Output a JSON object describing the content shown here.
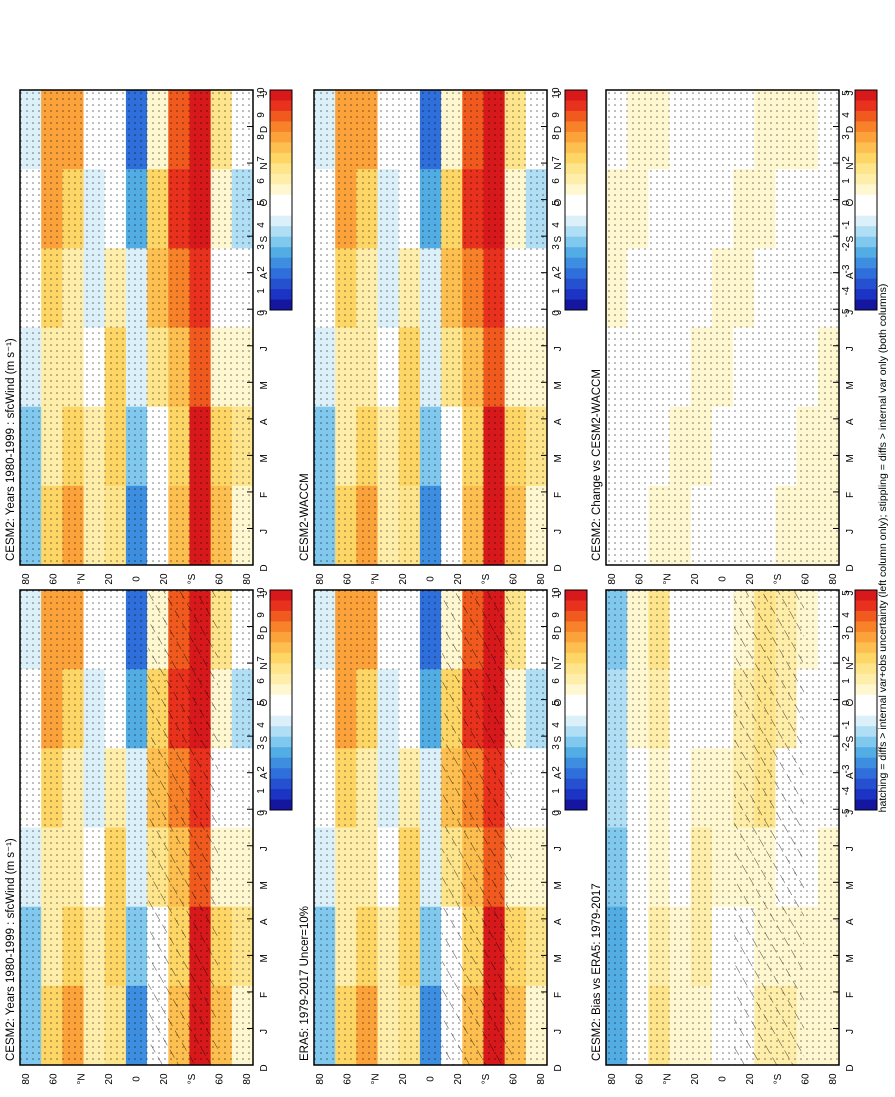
{
  "footer_note": "hatching = diffs > internal var+obs uncertainty (left column only); stippling = diffs > internal var only (both columns)",
  "axes": {
    "months": [
      "D",
      "J",
      "F",
      "M",
      "A",
      "M",
      "J",
      "J",
      "A",
      "S",
      "O",
      "N",
      "D",
      "J"
    ],
    "lat_ticks": [
      "80",
      "60",
      "°N",
      "20",
      "0",
      "20",
      "°S",
      "60",
      "80"
    ]
  },
  "colorbars": {
    "wind": {
      "labels": [
        "10",
        "9",
        "8",
        "7",
        "6",
        "5",
        "4",
        "3",
        "2",
        "1",
        "0"
      ],
      "colors": [
        "#d7191c",
        "#e8321e",
        "#f05a1e",
        "#f7822a",
        "#fca23a",
        "#fdbf4f",
        "#fed666",
        "#fee48a",
        "#feeeaa",
        "#fff7d0",
        "#ffffff",
        "#ffffff",
        "#dcf0fa",
        "#b0def5",
        "#80c8ee",
        "#52ade4",
        "#3d8ee0",
        "#2f6fdb",
        "#2550d0",
        "#1b34c4",
        "#1416a0"
      ]
    },
    "diff": {
      "labels": [
        "5",
        "4",
        "3",
        "2",
        "1",
        "0",
        "-1",
        "-2",
        "-3",
        "-4",
        "-5"
      ],
      "colors": [
        "#d7191c",
        "#e8321e",
        "#f05a1e",
        "#f7822a",
        "#fca23a",
        "#fdbf4f",
        "#fed666",
        "#fee48a",
        "#feeeaa",
        "#fff7d0",
        "#ffffff",
        "#ffffff",
        "#dcf0fa",
        "#b0def5",
        "#80c8ee",
        "#52ade4",
        "#3d8ee0",
        "#2f6fdb",
        "#2550d0",
        "#1b34c4",
        "#1416a0"
      ]
    }
  },
  "chart_data": [
    {
      "type": "heatmap",
      "title": "CESM2: Years 1980-1999 : sfcWind (m s⁻¹)",
      "variable": "sfcWind",
      "x": [
        "D",
        "J",
        "F",
        "M",
        "A",
        "M",
        "J",
        "J",
        "A",
        "S",
        "O",
        "N",
        "D",
        "J"
      ],
      "y": [
        "80",
        "60",
        "°N",
        "20",
        "0",
        "20",
        "°S",
        "60",
        "80"
      ],
      "zlim": [
        0,
        10
      ],
      "hatching": true,
      "stippling": true,
      "lat_profile": [
        4,
        7,
        7,
        5,
        6,
        3,
        6,
        8,
        10,
        6,
        5
      ]
    },
    {
      "type": "heatmap",
      "title": "CESM2: Years 1980-1999 : sfcWind (m s⁻¹)",
      "variable": "sfcWind",
      "x": [
        "D",
        "J",
        "F",
        "M",
        "A",
        "M",
        "J",
        "J",
        "A",
        "S",
        "O",
        "N",
        "D",
        "J"
      ],
      "y": [
        "80",
        "60",
        "°N",
        "20",
        "0",
        "20",
        "°S",
        "60",
        "80"
      ],
      "zlim": [
        0,
        10
      ],
      "hatching": false,
      "stippling": true,
      "lat_profile": [
        4,
        7,
        7,
        5,
        6,
        3,
        6,
        8,
        10,
        6,
        5
      ]
    },
    {
      "type": "heatmap",
      "title": "ERA5: 1979-2017 Uncer=10%",
      "variable": "sfcWind",
      "x": [
        "D",
        "J",
        "F",
        "M",
        "A",
        "M",
        "J",
        "J",
        "A",
        "S",
        "O",
        "N",
        "D",
        "J"
      ],
      "y": [
        "80",
        "60",
        "°N",
        "20",
        "0",
        "20",
        "°S",
        "60",
        "80"
      ],
      "zlim": [
        0,
        10
      ],
      "hatching": true,
      "stippling": true,
      "lat_profile": [
        4,
        7,
        7,
        5,
        6,
        3,
        6,
        8,
        10,
        6,
        5
      ]
    },
    {
      "type": "heatmap",
      "title": "CESM2-WACCM",
      "variable": "sfcWind",
      "x": [
        "D",
        "J",
        "F",
        "M",
        "A",
        "M",
        "J",
        "J",
        "A",
        "S",
        "O",
        "N",
        "D",
        "J"
      ],
      "y": [
        "80",
        "60",
        "°N",
        "20",
        "0",
        "20",
        "°S",
        "60",
        "80"
      ],
      "zlim": [
        0,
        10
      ],
      "hatching": false,
      "stippling": true,
      "lat_profile": [
        4,
        7,
        7,
        5,
        6,
        3,
        6,
        8,
        10,
        6,
        5
      ]
    },
    {
      "type": "heatmap",
      "title": "CESM2: Bias vs ERA5: 1979-2017",
      "variable": "sfcWind difference",
      "x": [
        "D",
        "J",
        "F",
        "M",
        "A",
        "M",
        "J",
        "J",
        "A",
        "S",
        "O",
        "N",
        "D",
        "J"
      ],
      "y": [
        "80",
        "60",
        "°N",
        "20",
        "0",
        "20",
        "°S",
        "60",
        "80"
      ],
      "zlim": [
        -5,
        5
      ],
      "hatching": true,
      "stippling": true,
      "lat_profile": [
        -2,
        0,
        1,
        0,
        0.5,
        0,
        0.5,
        1,
        0.5,
        0,
        0
      ]
    },
    {
      "type": "heatmap",
      "title": "CESM2: Change vs CESM2-WACCM",
      "variable": "sfcWind difference",
      "x": [
        "D",
        "J",
        "F",
        "M",
        "A",
        "M",
        "J",
        "J",
        "A",
        "S",
        "O",
        "N",
        "D",
        "J"
      ],
      "y": [
        "80",
        "60",
        "°N",
        "20",
        "0",
        "20",
        "°S",
        "60",
        "80"
      ],
      "zlim": [
        -5,
        5
      ],
      "hatching": false,
      "stippling": true,
      "lat_profile": [
        0,
        0,
        0,
        0,
        0,
        0,
        0,
        0,
        0,
        0,
        0
      ]
    }
  ]
}
